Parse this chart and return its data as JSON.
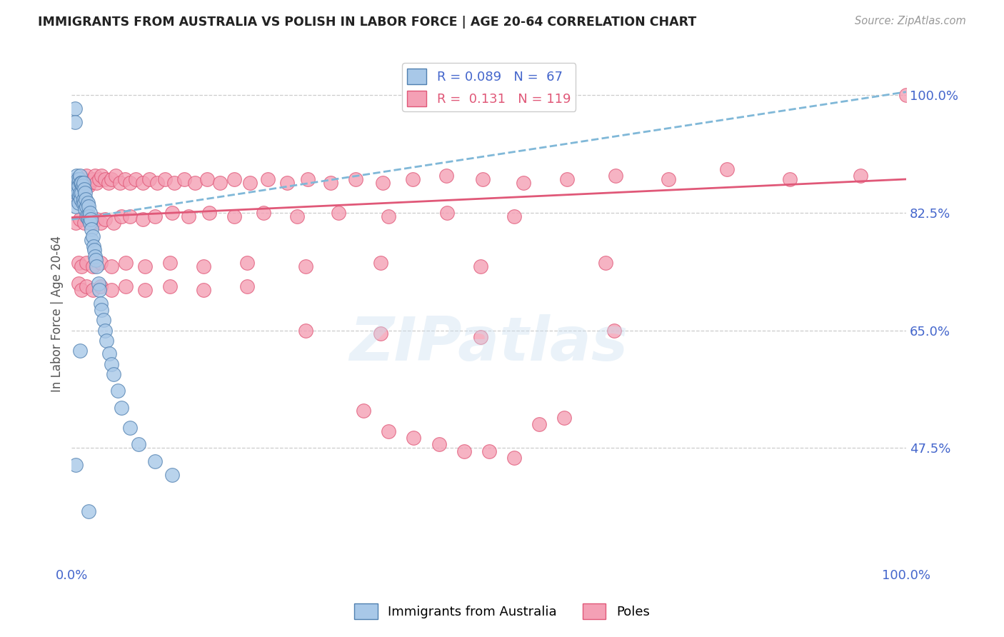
{
  "title": "IMMIGRANTS FROM AUSTRALIA VS POLISH IN LABOR FORCE | AGE 20-64 CORRELATION CHART",
  "source_text": "Source: ZipAtlas.com",
  "ylabel": "In Labor Force | Age 20-64",
  "xlim": [
    0.0,
    1.0
  ],
  "ylim": [
    0.3,
    1.05
  ],
  "yticks": [
    0.475,
    0.65,
    0.825,
    1.0
  ],
  "ytick_labels": [
    "47.5%",
    "65.0%",
    "82.5%",
    "100.0%"
  ],
  "xtick_labels": [
    "0.0%",
    "100.0%"
  ],
  "xticks": [
    0.0,
    1.0
  ],
  "legend_entries": [
    "Immigrants from Australia",
    "Poles"
  ],
  "r_australia": 0.089,
  "n_australia": 67,
  "r_poles": 0.131,
  "n_poles": 119,
  "watermark": "ZIPatlas",
  "scatter_blue_color": "#a8c8e8",
  "scatter_pink_color": "#f4a0b5",
  "line_blue_color": "#5080b0",
  "line_pink_color": "#e05878",
  "trendline_blue_color": "#80b8d8",
  "title_color": "#222222",
  "label_color": "#4466cc",
  "background_color": "#ffffff",
  "australia_x": [
    0.003,
    0.003,
    0.004,
    0.004,
    0.005,
    0.005,
    0.005,
    0.006,
    0.006,
    0.007,
    0.007,
    0.008,
    0.008,
    0.009,
    0.009,
    0.01,
    0.01,
    0.011,
    0.011,
    0.012,
    0.012,
    0.013,
    0.013,
    0.014,
    0.014,
    0.015,
    0.015,
    0.016,
    0.016,
    0.017,
    0.018,
    0.018,
    0.019,
    0.019,
    0.02,
    0.02,
    0.021,
    0.022,
    0.022,
    0.023,
    0.024,
    0.024,
    0.025,
    0.026,
    0.027,
    0.028,
    0.029,
    0.03,
    0.032,
    0.033,
    0.035,
    0.036,
    0.038,
    0.04,
    0.042,
    0.045,
    0.048,
    0.05,
    0.055,
    0.06,
    0.07,
    0.08,
    0.1,
    0.12,
    0.005,
    0.01,
    0.02
  ],
  "australia_y": [
    0.865,
    0.845,
    0.98,
    0.96,
    0.875,
    0.86,
    0.835,
    0.88,
    0.855,
    0.875,
    0.855,
    0.865,
    0.84,
    0.875,
    0.85,
    0.88,
    0.855,
    0.87,
    0.845,
    0.87,
    0.855,
    0.865,
    0.84,
    0.87,
    0.845,
    0.86,
    0.84,
    0.855,
    0.83,
    0.845,
    0.835,
    0.82,
    0.84,
    0.82,
    0.835,
    0.815,
    0.82,
    0.825,
    0.81,
    0.815,
    0.8,
    0.785,
    0.79,
    0.775,
    0.77,
    0.76,
    0.755,
    0.745,
    0.72,
    0.71,
    0.69,
    0.68,
    0.665,
    0.65,
    0.635,
    0.615,
    0.6,
    0.585,
    0.56,
    0.535,
    0.505,
    0.48,
    0.455,
    0.435,
    0.45,
    0.62,
    0.38
  ],
  "poles_x": [
    0.004,
    0.005,
    0.006,
    0.007,
    0.008,
    0.009,
    0.01,
    0.011,
    0.012,
    0.013,
    0.014,
    0.015,
    0.016,
    0.018,
    0.02,
    0.022,
    0.025,
    0.028,
    0.03,
    0.033,
    0.036,
    0.04,
    0.044,
    0.048,
    0.053,
    0.058,
    0.064,
    0.07,
    0.077,
    0.085,
    0.093,
    0.102,
    0.112,
    0.123,
    0.135,
    0.148,
    0.162,
    0.178,
    0.195,
    0.214,
    0.235,
    0.258,
    0.283,
    0.31,
    0.34,
    0.373,
    0.409,
    0.449,
    0.493,
    0.541,
    0.594,
    0.652,
    0.715,
    0.785,
    0.861,
    0.945,
    1.0,
    0.005,
    0.01,
    0.015,
    0.02,
    0.025,
    0.03,
    0.035,
    0.04,
    0.05,
    0.06,
    0.07,
    0.085,
    0.1,
    0.12,
    0.14,
    0.165,
    0.195,
    0.23,
    0.27,
    0.32,
    0.38,
    0.45,
    0.53,
    0.008,
    0.012,
    0.018,
    0.025,
    0.035,
    0.048,
    0.065,
    0.088,
    0.118,
    0.158,
    0.21,
    0.28,
    0.37,
    0.49,
    0.64,
    0.008,
    0.012,
    0.018,
    0.025,
    0.035,
    0.048,
    0.065,
    0.088,
    0.118,
    0.158,
    0.21,
    0.28,
    0.37,
    0.49,
    0.35,
    0.38,
    0.41,
    0.44,
    0.47,
    0.5,
    0.53,
    0.56,
    0.59,
    0.65
  ],
  "poles_y": [
    0.855,
    0.845,
    0.875,
    0.865,
    0.855,
    0.87,
    0.875,
    0.86,
    0.87,
    0.855,
    0.875,
    0.865,
    0.87,
    0.88,
    0.865,
    0.87,
    0.875,
    0.88,
    0.87,
    0.875,
    0.88,
    0.875,
    0.87,
    0.875,
    0.88,
    0.87,
    0.875,
    0.87,
    0.875,
    0.87,
    0.875,
    0.87,
    0.875,
    0.87,
    0.875,
    0.87,
    0.875,
    0.87,
    0.875,
    0.87,
    0.875,
    0.87,
    0.875,
    0.87,
    0.875,
    0.87,
    0.875,
    0.88,
    0.875,
    0.87,
    0.875,
    0.88,
    0.875,
    0.89,
    0.875,
    0.88,
    1.0,
    0.81,
    0.815,
    0.81,
    0.815,
    0.81,
    0.815,
    0.81,
    0.815,
    0.81,
    0.82,
    0.82,
    0.815,
    0.82,
    0.825,
    0.82,
    0.825,
    0.82,
    0.825,
    0.82,
    0.825,
    0.82,
    0.825,
    0.82,
    0.75,
    0.745,
    0.75,
    0.745,
    0.75,
    0.745,
    0.75,
    0.745,
    0.75,
    0.745,
    0.75,
    0.745,
    0.75,
    0.745,
    0.75,
    0.72,
    0.71,
    0.715,
    0.71,
    0.715,
    0.71,
    0.715,
    0.71,
    0.715,
    0.71,
    0.715,
    0.65,
    0.645,
    0.64,
    0.53,
    0.5,
    0.49,
    0.48,
    0.47,
    0.47,
    0.46,
    0.51,
    0.52,
    0.65
  ]
}
